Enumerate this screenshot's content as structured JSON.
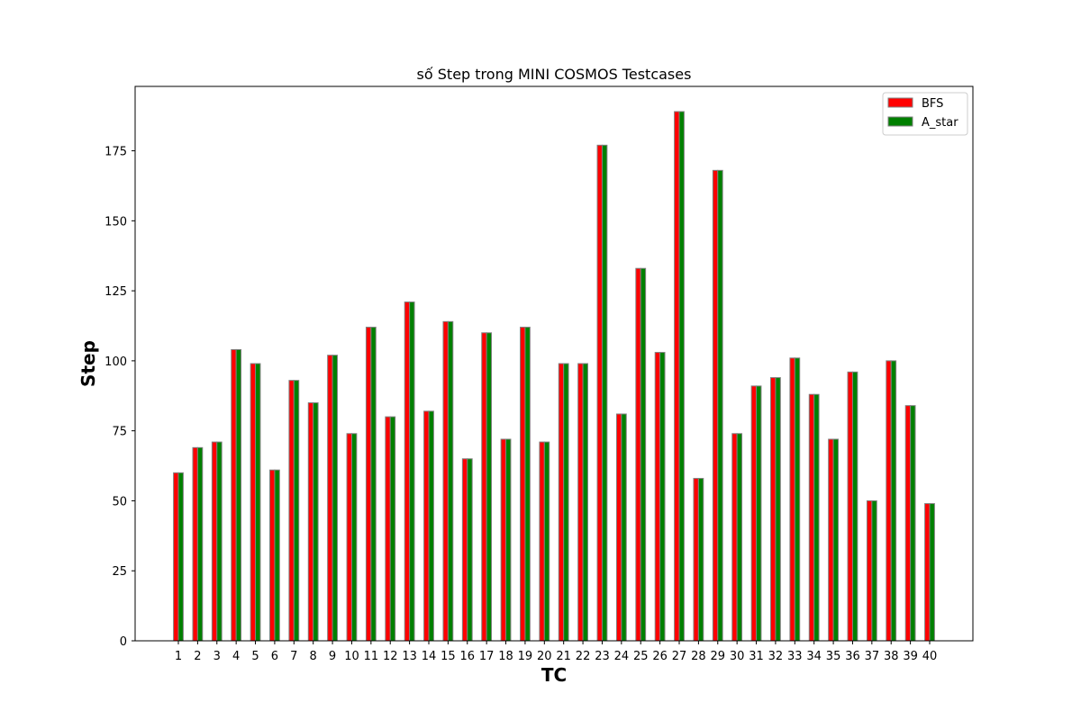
{
  "chart_data": {
    "type": "bar",
    "title": "số Step trong MINI COSMOS Testcases",
    "xlabel": "TC",
    "ylabel": "Step",
    "ylim": [
      0,
      198
    ],
    "yticks": [
      0,
      25,
      50,
      75,
      100,
      125,
      150,
      175
    ],
    "grid": false,
    "legend_position": "top-right",
    "categories": [
      "1",
      "2",
      "3",
      "4",
      "5",
      "6",
      "7",
      "8",
      "9",
      "10",
      "11",
      "12",
      "13",
      "14",
      "15",
      "16",
      "17",
      "18",
      "19",
      "20",
      "21",
      "22",
      "23",
      "24",
      "25",
      "26",
      "27",
      "28",
      "29",
      "30",
      "31",
      "32",
      "33",
      "34",
      "35",
      "36",
      "37",
      "38",
      "39",
      "40"
    ],
    "series": [
      {
        "name": "BFS",
        "color": "#ff0000",
        "values": [
          60,
          69,
          71,
          104,
          99,
          61,
          93,
          85,
          102,
          74,
          112,
          80,
          121,
          82,
          114,
          65,
          110,
          72,
          112,
          71,
          99,
          99,
          177,
          81,
          133,
          103,
          189,
          58,
          168,
          74,
          91,
          94,
          101,
          88,
          72,
          96,
          50,
          100,
          84,
          49
        ]
      },
      {
        "name": "A_star",
        "color": "#008000",
        "values": [
          60,
          69,
          71,
          104,
          99,
          61,
          93,
          85,
          102,
          74,
          112,
          80,
          121,
          82,
          114,
          65,
          110,
          72,
          112,
          71,
          99,
          99,
          177,
          81,
          133,
          103,
          189,
          58,
          168,
          74,
          91,
          94,
          101,
          88,
          72,
          96,
          50,
          100,
          84,
          49
        ]
      }
    ]
  }
}
